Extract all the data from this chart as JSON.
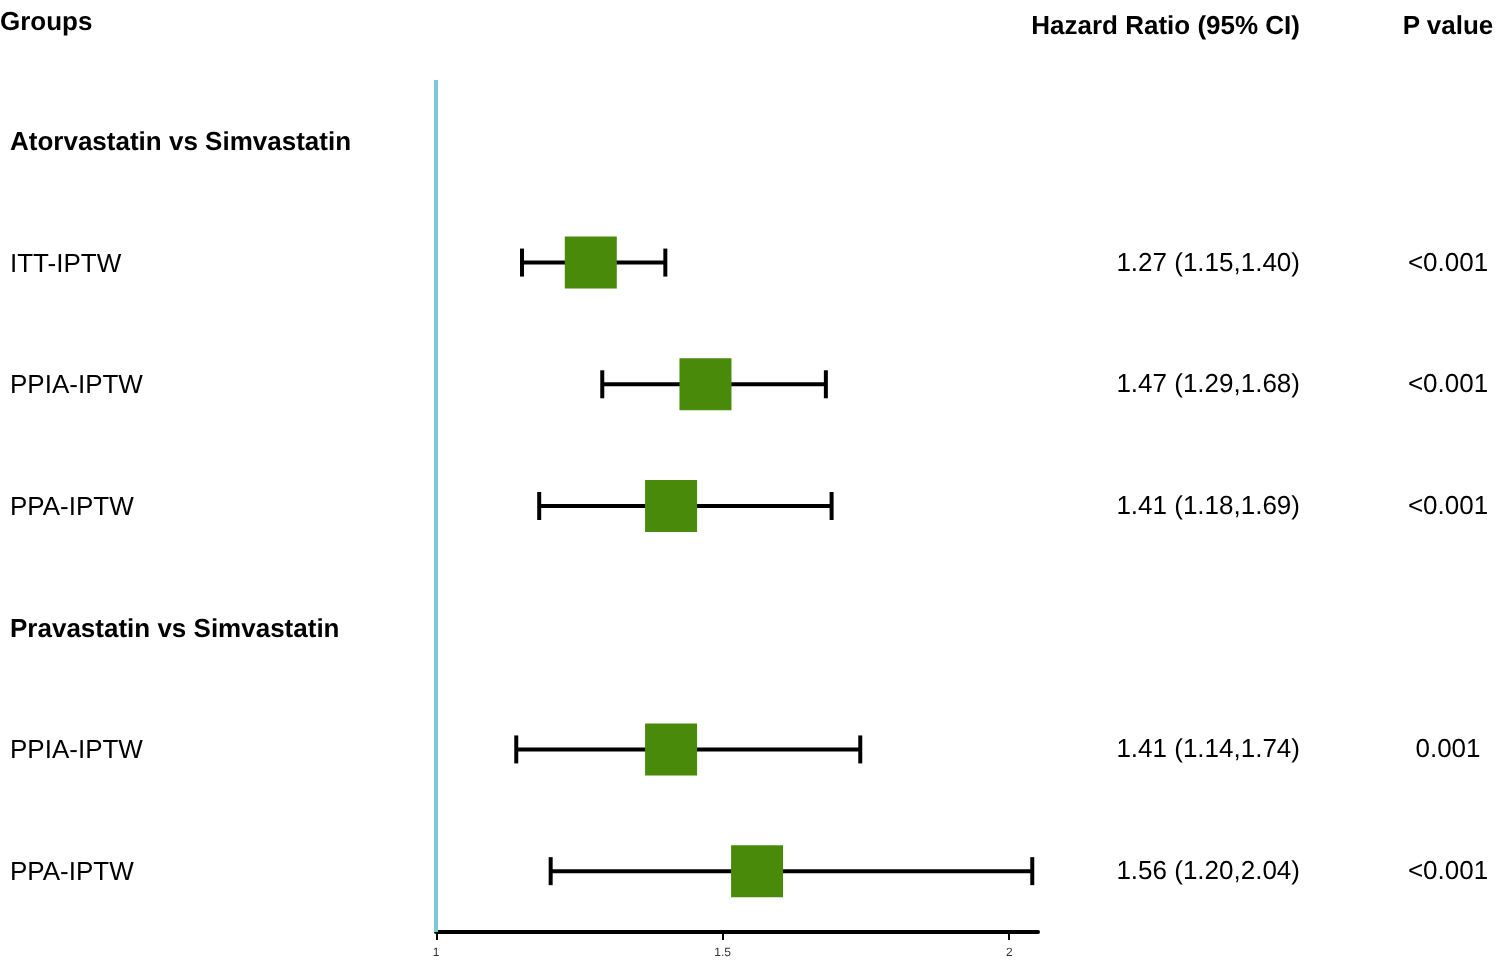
{
  "chart_data": {
    "type": "scatter",
    "orientation": "horizontal",
    "ylabel": "Groups",
    "categories": [
      "Atorvastatin vs Simvastatin",
      "ITT-IPTW",
      "PPIA-IPTW",
      "PPA-IPTW",
      "Pravastatin vs Simvastatin",
      "PPIA-IPTW",
      "PPA-IPTW"
    ],
    "values": [
      null,
      1.27,
      1.47,
      1.41,
      null,
      1.41,
      1.56
    ],
    "errors": [
      null,
      [
        1.15,
        1.4
      ],
      [
        1.29,
        1.68
      ],
      [
        1.18,
        1.69
      ],
      null,
      [
        1.14,
        1.74
      ],
      [
        1.2,
        2.04
      ]
    ],
    "value_labels": [
      null,
      "1.27 (1.15,1.40)",
      "1.47 (1.29,1.68)",
      "1.41 (1.18,1.69)",
      null,
      "1.41 (1.14,1.74)",
      "1.56 (1.20,2.04)"
    ],
    "annotations": [
      "Hazard Ratio (95% CI)",
      "P value",
      "<0.001",
      "<0.001",
      "<0.001",
      "0.001",
      "<0.001"
    ],
    "color": "#4a8a0a",
    "marker": "square",
    "xlim": [
      1,
      2.05
    ],
    "xticks": [
      1,
      1.5,
      2
    ],
    "ref_lines": [
      {
        "axis": "x",
        "value": 1,
        "color": "#7ec8d0"
      }
    ],
    "grid": false,
    "legend": false
  }
}
